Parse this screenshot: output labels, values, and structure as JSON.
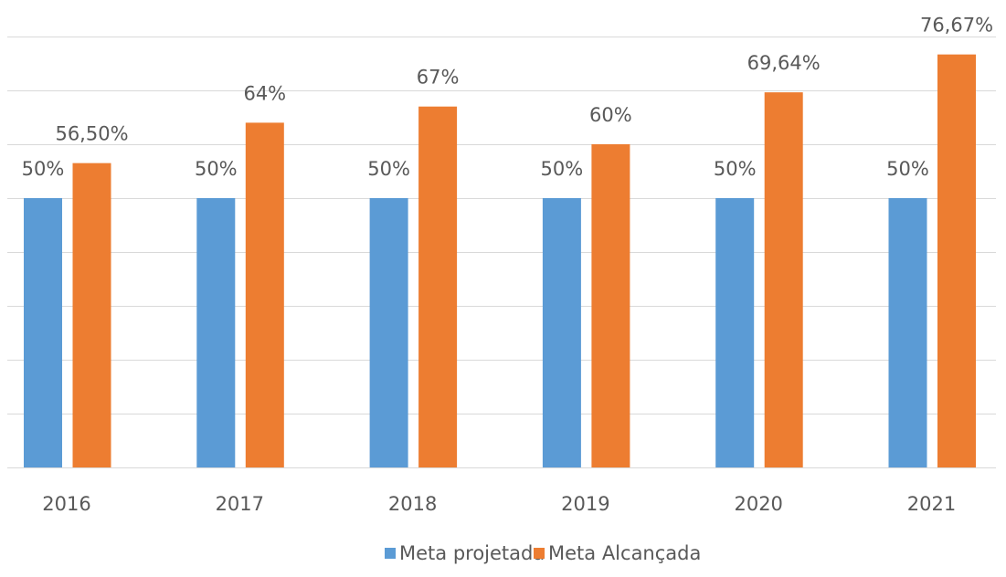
{
  "chart_data": {
    "type": "bar",
    "categories": [
      "2016",
      "2017",
      "2018",
      "2019",
      "2020",
      "2021"
    ],
    "series": [
      {
        "name": "Meta projetada",
        "color": "#5b9bd5",
        "values": [
          50,
          50,
          50,
          50,
          50,
          50
        ],
        "value_labels": [
          "50%",
          "50%",
          "50%",
          "50%",
          "50%",
          "50%"
        ]
      },
      {
        "name": "Meta Alcançada",
        "color": "#ed7d31",
        "values": [
          56.5,
          64,
          67,
          60,
          69.64,
          76.67
        ],
        "value_labels": [
          "56,50%",
          "64%",
          "67%",
          "60%",
          "69,64%",
          "76,67%"
        ]
      }
    ],
    "ylim": [
      0,
      80
    ],
    "yticks": [
      0,
      10,
      20,
      30,
      40,
      50,
      60,
      70,
      80
    ],
    "grid": true,
    "legend": "bottom"
  }
}
